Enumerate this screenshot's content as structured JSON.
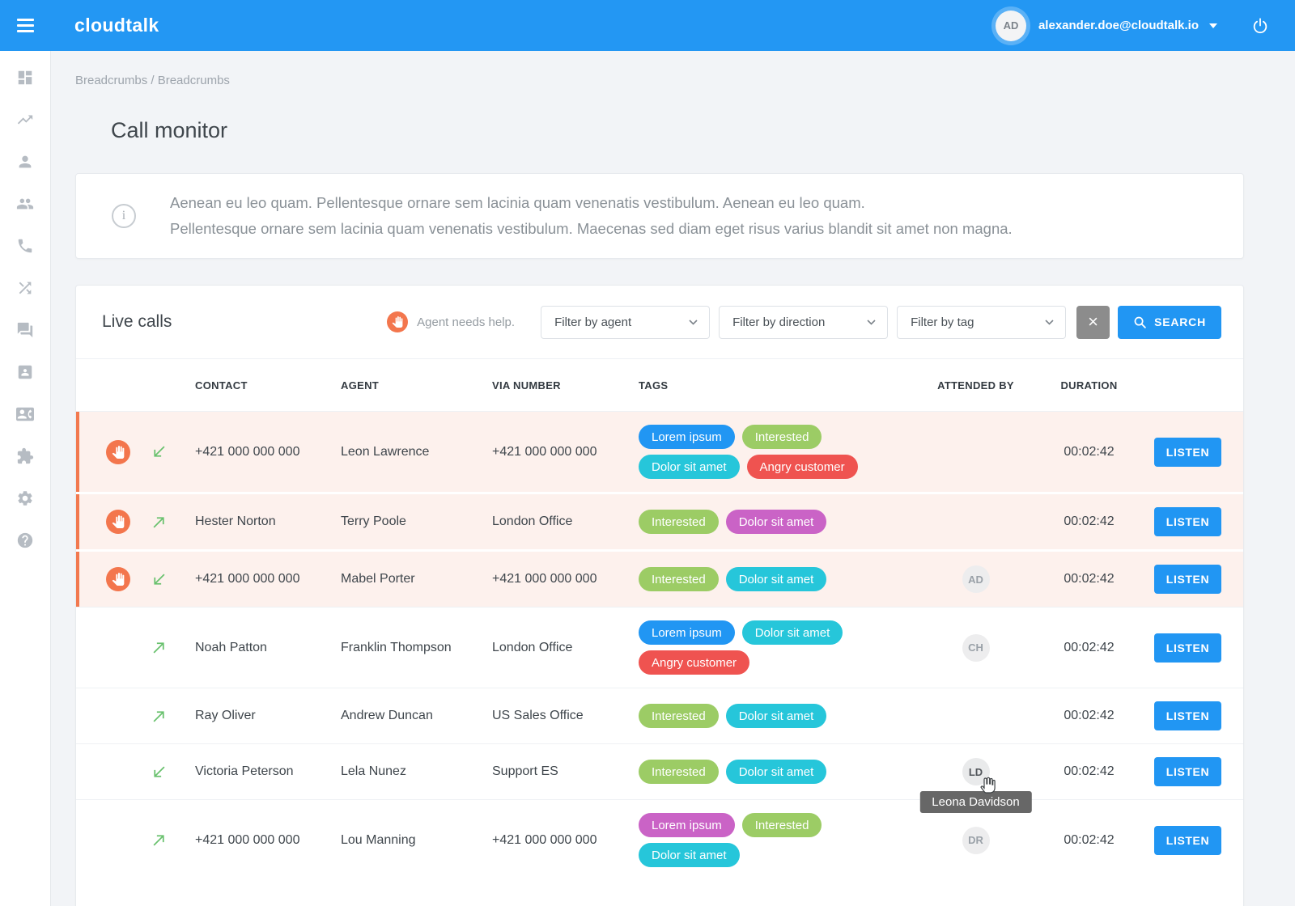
{
  "topbar": {
    "logo": "cloudtalk",
    "user_initials": "AD",
    "user_email": "alexander.doe@cloudtalk.io"
  },
  "sidebar": {
    "icons": [
      "dashboard-icon",
      "trending-up-icon",
      "user-icon",
      "users-icon",
      "phone-icon",
      "shuffle-icon",
      "chat-icon",
      "contact-card-icon",
      "contact-phone-icon",
      "puzzle-icon",
      "gear-icon",
      "help-icon"
    ]
  },
  "breadcrumbs": [
    "Breadcrumbs",
    "Breadcrumbs"
  ],
  "breadcrumb_separator": "/",
  "page": {
    "title": "Call monitor",
    "info_lines": [
      "Aenean eu leo quam. Pellentesque ornare sem lacinia quam venenatis vestibulum. Aenean eu leo quam.",
      "Pellentesque ornare sem lacinia quam venenatis vestibulum. Maecenas sed diam eget risus varius blandit sit amet non magna."
    ]
  },
  "live_calls": {
    "title": "Live calls",
    "help_legend": "Agent needs help.",
    "filters": [
      "Filter by agent",
      "Filter by direction",
      "Filter by tag"
    ],
    "clear_label": "×",
    "search_label": "SEARCH",
    "listen_label": "LISTEN",
    "columns": [
      "CONTACT",
      "AGENT",
      "VIA NUMBER",
      "TAGS",
      "ATTENDED BY",
      "DURATION"
    ],
    "rows": [
      {
        "needs_help": true,
        "direction": "incoming",
        "contact": "+421 000 000 000",
        "agent": "Leon Lawrence",
        "via_number": "+421 000 000 000",
        "tags": [
          {
            "label": "Lorem ipsum",
            "color": "#2196f3"
          },
          {
            "label": "Interested",
            "color": "#9ccc65"
          },
          {
            "label": "Dolor sit amet",
            "color": "#26c6da"
          },
          {
            "label": "Angry customer",
            "color": "#ef5350"
          }
        ],
        "attended_by": "",
        "duration": "00:02:42"
      },
      {
        "needs_help": true,
        "direction": "outgoing",
        "contact": "Hester Norton",
        "agent": "Terry Poole",
        "via_number": "London Office",
        "tags": [
          {
            "label": "Interested",
            "color": "#9ccc65"
          },
          {
            "label": "Dolor sit amet",
            "color": "#ca63c6"
          }
        ],
        "attended_by": "",
        "duration": "00:02:42"
      },
      {
        "needs_help": true,
        "direction": "incoming",
        "contact": "+421 000 000 000",
        "agent": "Mabel Porter",
        "via_number": "+421 000 000 000",
        "tags": [
          {
            "label": "Interested",
            "color": "#9ccc65"
          },
          {
            "label": "Dolor sit amet",
            "color": "#26c6da"
          }
        ],
        "attended_by": "AD",
        "duration": "00:02:42"
      },
      {
        "needs_help": false,
        "direction": "outgoing",
        "contact": "Noah Patton",
        "agent": "Franklin Thompson",
        "via_number": "London Office",
        "tags": [
          {
            "label": "Lorem ipsum",
            "color": "#2196f3"
          },
          {
            "label": "Dolor sit amet",
            "color": "#26c6da"
          },
          {
            "label": "Angry customer",
            "color": "#ef5350"
          }
        ],
        "attended_by": "CH",
        "duration": "00:02:42"
      },
      {
        "needs_help": false,
        "direction": "outgoing",
        "contact": "Ray Oliver",
        "agent": "Andrew Duncan",
        "via_number": "US Sales Office",
        "tags": [
          {
            "label": "Interested",
            "color": "#9ccc65"
          },
          {
            "label": "Dolor sit amet",
            "color": "#26c6da"
          }
        ],
        "attended_by": "",
        "duration": "00:02:42"
      },
      {
        "needs_help": false,
        "direction": "incoming",
        "contact": "Victoria Peterson",
        "agent": "Lela Nunez",
        "via_number": "Support ES",
        "tags": [
          {
            "label": "Interested",
            "color": "#9ccc65"
          },
          {
            "label": "Dolor sit amet",
            "color": "#26c6da"
          }
        ],
        "attended_by": "LD",
        "attended_tooltip": "Leona Davidson",
        "attended_hovered": true,
        "duration": "00:02:42"
      },
      {
        "needs_help": false,
        "direction": "outgoing",
        "contact": "+421 000 000 000",
        "agent": "Lou Manning",
        "via_number": "+421 000 000 000",
        "tags": [
          {
            "label": "Lorem ipsum",
            "color": "#ca63c6"
          },
          {
            "label": "Interested",
            "color": "#9ccc65"
          },
          {
            "label": "Dolor sit amet",
            "color": "#26c6da"
          }
        ],
        "attended_by": "DR",
        "duration": "00:02:42"
      }
    ]
  },
  "colors": {
    "topbar": "#2397f3",
    "accent": "#2196f3",
    "help_badge": "#f3764d",
    "row_highlight_bg": "#fdf1ed",
    "row_highlight_border": "#f2794f",
    "arrow_green": "#69c16e",
    "tooltip_bg": "#616161"
  }
}
